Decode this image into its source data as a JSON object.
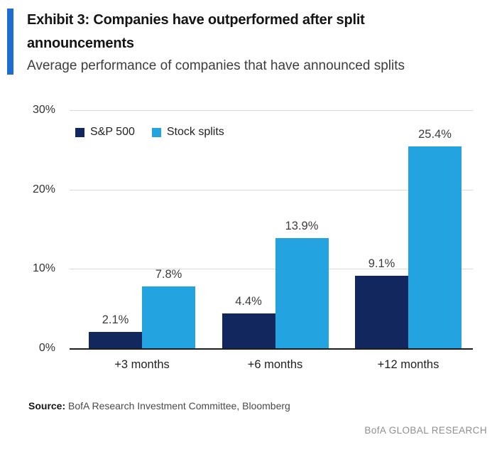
{
  "header": {
    "title": "Exhibit 3: Companies have outperformed after split announcements",
    "subtitle": "Average performance of companies that have announced splits"
  },
  "chart_data": {
    "type": "bar",
    "title": "Exhibit 3: Companies have outperformed after split announcements",
    "subtitle": "Average performance of companies that have announced splits",
    "categories": [
      "+3 months",
      "+6 months",
      "+12 months"
    ],
    "series": [
      {
        "name": "S&P 500",
        "color": "#12275E",
        "values": [
          2.1,
          4.4,
          9.1
        ],
        "labels": [
          "2.1%",
          "4.4%",
          "9.1%"
        ]
      },
      {
        "name": "Stock splits",
        "color": "#23A3DF",
        "values": [
          7.8,
          13.9,
          25.4
        ],
        "labels": [
          "7.8%",
          "13.9%",
          "25.4%"
        ]
      }
    ],
    "xlabel": "",
    "ylabel": "",
    "ylim": [
      0,
      30
    ],
    "yticks": [
      {
        "label": "0%",
        "value": 0
      },
      {
        "label": "10%",
        "value": 10
      },
      {
        "label": "20%",
        "value": 20
      },
      {
        "label": "30%",
        "value": 30
      }
    ],
    "grid": true,
    "legend_position": "top-left"
  },
  "footer": {
    "source_label": "Source:",
    "source_text": "BofA Research Investment Committee, Bloomberg",
    "brand": "BofA GLOBAL RESEARCH"
  },
  "colors": {
    "accent": "#1C6DD2",
    "gridline": "#D9D9D9",
    "axis_line": "#1D1D1D"
  }
}
